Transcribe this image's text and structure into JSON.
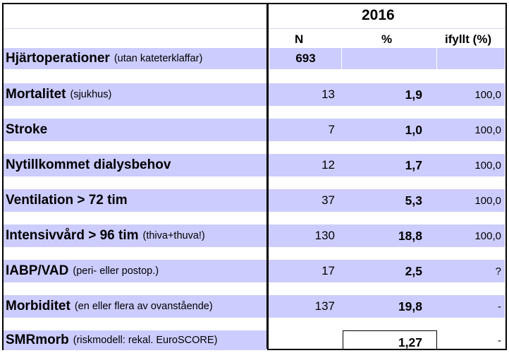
{
  "header": {
    "year": "2016",
    "col_n": "N",
    "col_pct": "%",
    "col_fill": "ifyllt (%)"
  },
  "colors": {
    "band": "#ccccff",
    "background": "#ffffff",
    "border": "#000000"
  },
  "rows": [
    {
      "label": "Hjärtoperationer",
      "note": "(utan kateterklaffar)",
      "n": "693",
      "pct": "",
      "fill": ""
    },
    {
      "label": "Mortalitet",
      "note": "(sjukhus)",
      "n": "13",
      "pct": "1,9",
      "fill": "100,0"
    },
    {
      "label": "Stroke",
      "note": "",
      "n": "7",
      "pct": "1,0",
      "fill": "100,0"
    },
    {
      "label": "Nytillkommet dialysbehov",
      "note": "",
      "n": "12",
      "pct": "1,7",
      "fill": "100,0"
    },
    {
      "label": "Ventilation > 72 tim",
      "note": "",
      "n": "37",
      "pct": "5,3",
      "fill": "100,0"
    },
    {
      "label": "Intensivvård > 96 tim",
      "note": "(thiva+thuva!)",
      "n": "130",
      "pct": "18,8",
      "fill": "100,0"
    },
    {
      "label": "IABP/VAD",
      "note": "(peri- eller postop.)",
      "n": "17",
      "pct": "2,5",
      "fill": "?"
    },
    {
      "label": "Morbiditet",
      "note": "(en eller flera av ovanstående)",
      "n": "137",
      "pct": "19,8",
      "fill": "-"
    },
    {
      "label": "SMRmorb",
      "note": "(riskmodell: rekal. EuroSCORE)",
      "n": "",
      "pct": "1,27",
      "fill": "-"
    }
  ]
}
